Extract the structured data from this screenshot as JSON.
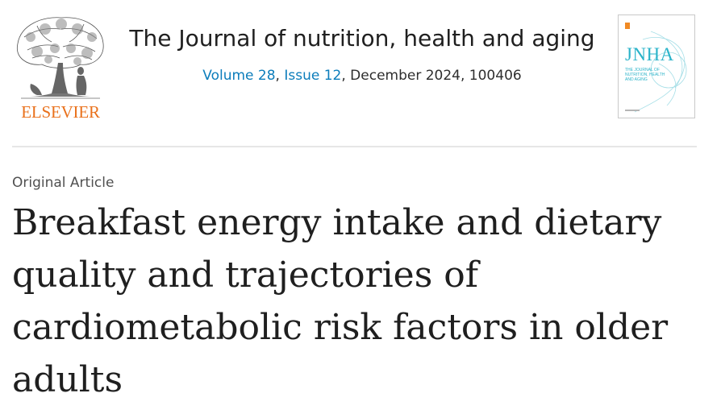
{
  "publisher": {
    "name": "ELSEVIER",
    "logo_icon": "tree-of-knowledge-icon",
    "color": "#e9711c"
  },
  "journal": {
    "title": "The Journal of nutrition, health and aging",
    "volume": "Volume 28",
    "issue": "Issue 12",
    "date_id": "December 2024, 100406",
    "link_color": "#0c7dbb"
  },
  "cover": {
    "abbrev": "JNHA",
    "subtitle": "THE JOURNAL OF NUTRITION, HEALTH AND AGING",
    "accent_color": "#2ab3c9"
  },
  "article": {
    "type": "Original Article",
    "title": "Breakfast energy intake and dietary quality and trajectories of cardiometabolic risk factors in older adults"
  }
}
